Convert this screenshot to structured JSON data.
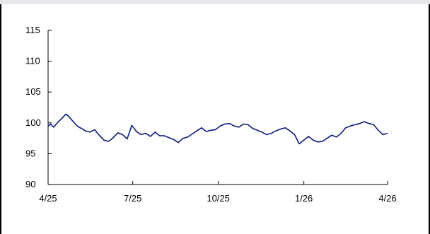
{
  "chart_data": {
    "type": "line",
    "title": "",
    "xlabel": "",
    "ylabel": "",
    "ylim": [
      90,
      115
    ],
    "yticks": [
      90,
      95,
      100,
      105,
      110,
      115
    ],
    "xticks": [
      "4/25",
      "7/25",
      "10/25",
      "1/26",
      "4/26"
    ],
    "grid": false,
    "legend": "none",
    "line_color": "#0b1a7a",
    "series": [
      {
        "name": "",
        "x": [
          "4/25",
          "4/28",
          "5/1",
          "5/6",
          "5/9",
          "5/14",
          "5/17",
          "5/22",
          "5/27",
          "6/1",
          "6/4",
          "6/9",
          "6/14",
          "6/19",
          "6/24",
          "6/29",
          "7/4",
          "7/9",
          "7/14",
          "7/19",
          "7/24",
          "7/29",
          "8/3",
          "8/8",
          "8/13",
          "8/18",
          "8/23",
          "8/28",
          "9/2",
          "9/7",
          "9/12",
          "9/17",
          "9/22",
          "9/27",
          "10/2",
          "10/7",
          "10/12",
          "10/17",
          "10/22",
          "10/27",
          "11/1",
          "11/6",
          "11/11",
          "11/16",
          "11/21",
          "11/26",
          "12/1",
          "12/6",
          "12/11",
          "12/16",
          "12/21",
          "12/26",
          "12/31",
          "1/5",
          "1/10",
          "1/15",
          "1/20",
          "1/25",
          "1/30",
          "2/4",
          "2/9",
          "2/14",
          "2/19",
          "2/24",
          "3/1",
          "3/6",
          "3/11",
          "3/16",
          "3/21",
          "3/26",
          "3/31",
          "4/5",
          "4/10",
          "4/15",
          "4/20",
          "4/25"
        ],
        "values": [
          99.5,
          99.8,
          99.3,
          100.2,
          100.6,
          101.4,
          101.1,
          100.2,
          99.4,
          99.0,
          98.7,
          98.5,
          98.9,
          98.0,
          97.2,
          97.0,
          97.6,
          98.4,
          98.1,
          97.4,
          99.6,
          98.6,
          98.1,
          98.3,
          97.8,
          98.5,
          97.9,
          97.9,
          97.6,
          97.3,
          96.8,
          97.5,
          97.7,
          98.2,
          98.7,
          99.2,
          98.6,
          98.8,
          98.9,
          99.5,
          99.8,
          99.9,
          99.5,
          99.3,
          99.8,
          99.7,
          99.1,
          98.8,
          98.5,
          98.1,
          98.3,
          98.7,
          99.0,
          99.2,
          98.7,
          98.1,
          96.6,
          97.2,
          97.8,
          97.2,
          96.9,
          97.0,
          97.5,
          98.0,
          97.7,
          98.3,
          99.2,
          99.5,
          99.7,
          99.9,
          100.2,
          99.9,
          99.7,
          98.8,
          98.1,
          98.3
        ]
      }
    ]
  }
}
